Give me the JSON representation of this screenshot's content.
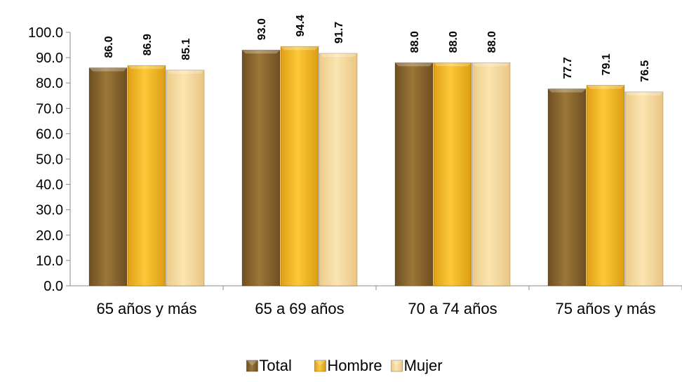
{
  "chart_data": {
    "type": "bar",
    "title": "",
    "xlabel": "",
    "ylabel": "",
    "categories": [
      "65 años y más",
      "65 a 69 años",
      "70 a 74 años",
      "75 años y más"
    ],
    "series": [
      {
        "name": "Total",
        "values": [
          86.0,
          93.0,
          88.0,
          77.7
        ],
        "color": "#8e6a30"
      },
      {
        "name": "Hombre",
        "values": [
          86.9,
          94.4,
          88.0,
          79.1
        ],
        "color": "#f7be2e"
      },
      {
        "name": "Mujer",
        "values": [
          85.1,
          91.7,
          88.0,
          76.5
        ],
        "color": "#f8dca0"
      }
    ],
    "ylim": [
      0,
      100
    ],
    "yticks": [
      "0.0",
      "10.0",
      "20.0",
      "30.0",
      "40.0",
      "50.0",
      "60.0",
      "70.0",
      "80.0",
      "90.0",
      "100.0"
    ],
    "data_labels": [
      [
        "86.0",
        "93.0",
        "88.0",
        "77.7"
      ],
      [
        "86.9",
        "94.4",
        "88.0",
        "79.1"
      ],
      [
        "85.1",
        "91.7",
        "88.0",
        "76.5"
      ]
    ],
    "grid": false,
    "legend_position": "bottom"
  }
}
